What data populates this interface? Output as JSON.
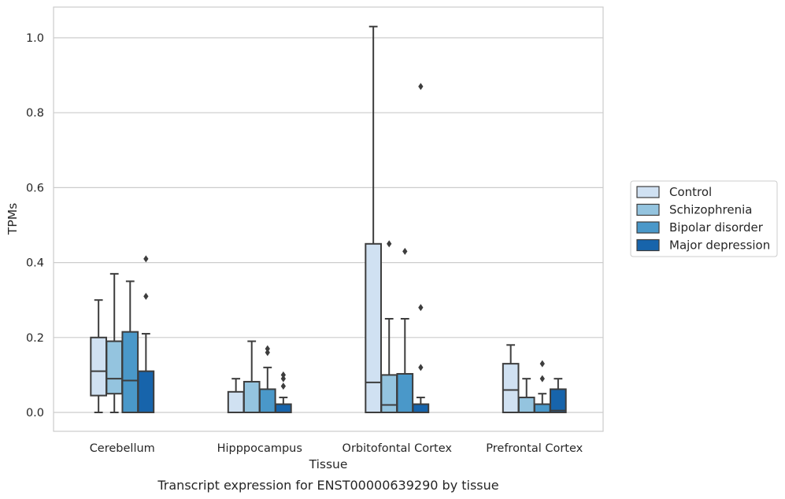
{
  "chart_data": {
    "type": "boxplot",
    "xlabel": "Tissue",
    "ylabel": "TPMs",
    "caption": "Transcript expression for ENST00000639290 by tissue",
    "ylim": [
      -0.05,
      1.08
    ],
    "yticks": [
      "0.0",
      "0.2",
      "0.4",
      "0.6",
      "0.8",
      "1.0"
    ],
    "grid": true,
    "legend_position": "right",
    "categories": [
      "Cerebellum",
      "Hipppocampus",
      "Orbitofontal Cortex",
      "Prefrontal Cortex"
    ],
    "series": [
      {
        "name": "Control",
        "color": "#d0e1f2",
        "boxes": [
          {
            "whisker_low": 0.0,
            "q1": 0.045,
            "median": 0.11,
            "q3": 0.2,
            "whisker_high": 0.3,
            "outliers": []
          },
          {
            "whisker_low": 0.0,
            "q1": 0.0,
            "median": 0.0,
            "q3": 0.055,
            "whisker_high": 0.09,
            "outliers": []
          },
          {
            "whisker_low": 0.0,
            "q1": 0.0,
            "median": 0.08,
            "q3": 0.45,
            "whisker_high": 1.03,
            "outliers": []
          },
          {
            "whisker_low": 0.0,
            "q1": 0.0,
            "median": 0.06,
            "q3": 0.13,
            "whisker_high": 0.18,
            "outliers": []
          }
        ]
      },
      {
        "name": "Schizophrenia",
        "color": "#94c4df",
        "boxes": [
          {
            "whisker_low": 0.0,
            "q1": 0.05,
            "median": 0.09,
            "q3": 0.19,
            "whisker_high": 0.37,
            "outliers": []
          },
          {
            "whisker_low": 0.0,
            "q1": 0.0,
            "median": 0.0,
            "q3": 0.082,
            "whisker_high": 0.19,
            "outliers": []
          },
          {
            "whisker_low": 0.0,
            "q1": 0.0,
            "median": 0.02,
            "q3": 0.1,
            "whisker_high": 0.25,
            "outliers": [
              0.45
            ]
          },
          {
            "whisker_low": 0.0,
            "q1": 0.0,
            "median": 0.0,
            "q3": 0.04,
            "whisker_high": 0.09,
            "outliers": []
          }
        ]
      },
      {
        "name": "Bipolar disorder",
        "color": "#4a98c9",
        "boxes": [
          {
            "whisker_low": 0.0,
            "q1": 0.0,
            "median": 0.085,
            "q3": 0.215,
            "whisker_high": 0.35,
            "outliers": []
          },
          {
            "whisker_low": 0.0,
            "q1": 0.0,
            "median": 0.0,
            "q3": 0.062,
            "whisker_high": 0.12,
            "outliers": [
              0.16,
              0.17
            ]
          },
          {
            "whisker_low": 0.0,
            "q1": 0.0,
            "median": 0.0,
            "q3": 0.103,
            "whisker_high": 0.25,
            "outliers": [
              0.43
            ]
          },
          {
            "whisker_low": 0.0,
            "q1": 0.0,
            "median": 0.0,
            "q3": 0.022,
            "whisker_high": 0.05,
            "outliers": [
              0.09,
              0.13
            ]
          }
        ]
      },
      {
        "name": "Major depression",
        "color": "#1764ab",
        "boxes": [
          {
            "whisker_low": 0.0,
            "q1": 0.0,
            "median": 0.0,
            "q3": 0.11,
            "whisker_high": 0.21,
            "outliers": [
              0.31,
              0.41
            ]
          },
          {
            "whisker_low": 0.0,
            "q1": 0.0,
            "median": 0.0,
            "q3": 0.022,
            "whisker_high": 0.04,
            "outliers": [
              0.07,
              0.09,
              0.1
            ]
          },
          {
            "whisker_low": 0.0,
            "q1": 0.0,
            "median": 0.0,
            "q3": 0.022,
            "whisker_high": 0.04,
            "outliers": [
              0.12,
              0.28,
              0.87
            ]
          },
          {
            "whisker_low": 0.0,
            "q1": 0.0,
            "median": 0.005,
            "q3": 0.062,
            "whisker_high": 0.09,
            "outliers": []
          }
        ]
      }
    ]
  }
}
